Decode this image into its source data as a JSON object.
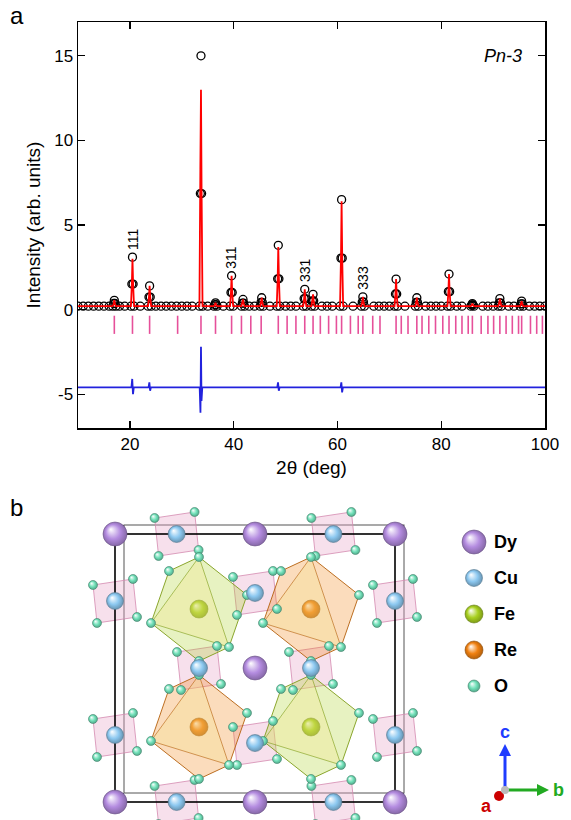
{
  "chart_data": {
    "type": "scatter",
    "panel_label": "a",
    "xlabel": "2θ (deg)",
    "ylabel": "Intensity (arb. units)",
    "xlim": [
      10,
      100
    ],
    "ylim": [
      -7,
      17
    ],
    "xticks": [
      20,
      40,
      60,
      80,
      100
    ],
    "yticks": [
      -5,
      0,
      5,
      10,
      15
    ],
    "grid": false,
    "x": [
      10,
      11,
      12,
      13,
      14,
      15,
      16,
      16.7,
      16.88,
      17.0,
      17.12,
      17.3,
      18,
      19,
      20.2,
      20.38,
      20.5,
      20.62,
      20.8,
      22,
      23.5,
      23.68,
      23.8,
      23.92,
      24.1,
      25,
      26,
      27,
      28,
      29,
      30,
      31,
      32,
      33.4,
      33.58,
      33.7,
      33.82,
      34.0,
      35,
      36.2,
      36.38,
      36.5,
      36.62,
      36.8,
      38,
      39.3,
      39.48,
      39.6,
      39.72,
      39.9,
      41.5,
      41.68,
      41.8,
      41.92,
      42.1,
      43,
      44,
      45.1,
      45.28,
      45.4,
      45.52,
      45.7,
      47,
      48.3,
      48.48,
      48.6,
      48.72,
      48.9,
      50,
      51,
      52,
      53.4,
      53.58,
      53.7,
      53.82,
      54.0,
      55.0,
      55.18,
      55.3,
      55.42,
      55.6,
      57,
      58,
      59,
      60.5,
      60.68,
      60.8,
      60.92,
      61.1,
      63,
      64.6,
      64.78,
      64.9,
      65.02,
      65.2,
      67,
      68,
      69,
      70,
      71.0,
      71.18,
      71.3,
      71.42,
      71.6,
      73,
      75.0,
      75.18,
      75.3,
      75.42,
      75.6,
      77,
      78,
      79,
      80,
      81.2,
      81.38,
      81.5,
      81.62,
      81.8,
      83,
      84,
      85.7,
      85.88,
      86.0,
      86.12,
      86.3,
      88,
      89,
      90,
      91.0,
      91.18,
      91.3,
      91.42,
      91.6,
      93,
      94,
      95.2,
      95.38,
      95.5,
      95.62,
      95.8,
      97,
      98,
      99,
      100
    ],
    "series": [
      {
        "type": "scatter",
        "marker": "circle",
        "color": "#000000",
        "values": [
          0.2,
          0.2,
          0.2,
          0.2,
          0.2,
          0.2,
          0.2,
          0.2,
          0.36,
          0.55,
          0.36,
          0.2,
          0.2,
          0.2,
          0.2,
          1.51,
          3.1,
          1.51,
          0.2,
          0.2,
          0.2,
          0.74,
          1.4,
          0.74,
          0.2,
          0.2,
          0.2,
          0.2,
          0.2,
          0.2,
          0.2,
          0.2,
          0.2,
          0.2,
          6.86,
          15.0,
          6.86,
          0.2,
          0.2,
          0.2,
          0.29,
          0.4,
          0.29,
          0.2,
          0.2,
          0.2,
          1.01,
          2.0,
          1.01,
          0.2,
          0.2,
          0.38,
          0.6,
          0.38,
          0.2,
          0.2,
          0.2,
          0.2,
          0.43,
          0.7,
          0.43,
          0.2,
          0.2,
          0.2,
          1.82,
          3.8,
          1.82,
          0.2,
          0.2,
          0.2,
          0.2,
          0.2,
          0.65,
          1.2,
          0.65,
          0.2,
          0.2,
          0.52,
          0.9,
          0.52,
          0.2,
          0.2,
          0.2,
          0.2,
          0.2,
          3.04,
          6.5,
          3.04,
          0.2,
          0.2,
          0.2,
          0.45,
          0.75,
          0.45,
          0.2,
          0.2,
          0.2,
          0.2,
          0.2,
          0.2,
          0.92,
          1.8,
          0.92,
          0.2,
          0.2,
          0.2,
          0.43,
          0.7,
          0.43,
          0.2,
          0.2,
          0.2,
          0.2,
          0.2,
          0.2,
          1.06,
          2.1,
          1.06,
          0.2,
          0.2,
          0.2,
          0.2,
          0.27,
          0.35,
          0.27,
          0.2,
          0.2,
          0.2,
          0.2,
          0.2,
          0.4,
          0.65,
          0.4,
          0.2,
          0.2,
          0.2,
          0.2,
          0.34,
          0.5,
          0.34,
          0.2,
          0.2,
          0.2,
          0.2,
          0.2
        ]
      },
      {
        "type": "line",
        "line_style": "solid",
        "color": "#ff0000",
        "values": [
          0.2,
          0.2,
          0.2,
          0.2,
          0.2,
          0.2,
          0.2,
          0.2,
          0.36,
          0.55,
          0.36,
          0.2,
          0.2,
          0.2,
          0.2,
          1.51,
          3.0,
          1.51,
          0.2,
          0.2,
          0.2,
          0.74,
          1.4,
          0.74,
          0.2,
          0.2,
          0.2,
          0.2,
          0.2,
          0.2,
          0.2,
          0.2,
          0.2,
          0.2,
          8.3,
          13.0,
          6.9,
          0.2,
          0.2,
          0.2,
          0.29,
          0.4,
          0.29,
          0.2,
          0.2,
          0.2,
          1.01,
          2.0,
          1.01,
          0.2,
          0.2,
          0.38,
          0.6,
          0.38,
          0.2,
          0.2,
          0.2,
          0.2,
          0.43,
          0.7,
          0.43,
          0.2,
          0.2,
          0.2,
          1.82,
          3.7,
          1.82,
          0.2,
          0.2,
          0.2,
          0.2,
          0.2,
          0.65,
          1.2,
          0.65,
          0.2,
          0.2,
          0.52,
          0.9,
          0.52,
          0.2,
          0.2,
          0.2,
          0.2,
          0.2,
          3.04,
          6.4,
          3.04,
          0.2,
          0.2,
          0.2,
          0.45,
          0.75,
          0.45,
          0.2,
          0.2,
          0.2,
          0.2,
          0.2,
          0.2,
          0.92,
          1.8,
          0.92,
          0.2,
          0.2,
          0.2,
          0.43,
          0.7,
          0.43,
          0.2,
          0.2,
          0.2,
          0.2,
          0.2,
          0.2,
          1.06,
          2.1,
          1.06,
          0.2,
          0.2,
          0.2,
          0.2,
          0.27,
          0.35,
          0.27,
          0.2,
          0.2,
          0.2,
          0.2,
          0.2,
          0.4,
          0.65,
          0.4,
          0.2,
          0.2,
          0.2,
          0.2,
          0.34,
          0.5,
          0.34,
          0.2,
          0.2,
          0.2,
          0.2,
          0.2
        ]
      },
      {
        "type": "scatter",
        "marker": "tick",
        "color": "#e6509a",
        "x": [
          17.0,
          20.5,
          23.8,
          29.2,
          33.7,
          36.5,
          39.6,
          41.5,
          43.3,
          45.3,
          48.6,
          50.3,
          52.0,
          53.7,
          55.3,
          56.7,
          58.3,
          59.8,
          60.8,
          62.5,
          64.0,
          64.9,
          66.8,
          68.2,
          71.3,
          72.3,
          73.6,
          75.3,
          76.3,
          77.6,
          78.9,
          80.3,
          81.5,
          82.8,
          84.0,
          85.2,
          86.0,
          87.7,
          89.0,
          90.1,
          91.3,
          92.5,
          93.7,
          94.9,
          95.5,
          97.2,
          98.4,
          99.5
        ],
        "values": [
          -0.9,
          -0.9,
          -0.9,
          -0.9,
          -0.9,
          -0.9,
          -0.9,
          -0.9,
          -0.9,
          -0.9,
          -0.9,
          -0.9,
          -0.9,
          -0.9,
          -0.9,
          -0.9,
          -0.9,
          -0.9,
          -0.9,
          -0.9,
          -0.9,
          -0.9,
          -0.9,
          -0.9,
          -0.9,
          -0.9,
          -0.9,
          -0.9,
          -0.9,
          -0.9,
          -0.9,
          -0.9,
          -0.9,
          -0.9,
          -0.9,
          -0.9,
          -0.9,
          -0.9,
          -0.9,
          -0.9,
          -0.9,
          -0.9,
          -0.9,
          -0.9,
          -0.9,
          -0.9,
          -0.9,
          -0.9
        ]
      },
      {
        "type": "line",
        "line_style": "solid",
        "color": "#2222dd",
        "x": [
          10,
          20.3,
          20.45,
          20.6,
          20.75,
          23.6,
          23.75,
          23.9,
          24.05,
          33.45,
          33.6,
          33.7,
          33.8,
          33.95,
          48.4,
          48.55,
          48.7,
          48.85,
          60.6,
          60.75,
          60.9,
          61.05,
          100
        ],
        "values": [
          -4.6,
          -4.6,
          -4.1,
          -5.0,
          -4.6,
          -4.6,
          -4.3,
          -4.8,
          -4.6,
          -4.6,
          -6.1,
          -2.2,
          -5.4,
          -4.6,
          -4.6,
          -4.3,
          -4.8,
          -4.6,
          -4.6,
          -4.3,
          -4.9,
          -4.6,
          -4.6
        ]
      }
    ],
    "peak_labels": [
      {
        "text": "111",
        "x": 20.5,
        "y": 3.4
      },
      {
        "text": "311",
        "x": 39.6,
        "y": 2.3
      },
      {
        "text": "331",
        "x": 53.7,
        "y": 1.5
      },
      {
        "text": "333",
        "x": 64.9,
        "y": 1.05
      }
    ],
    "annotations": [
      {
        "text": "Pn-3",
        "x": 92,
        "y": 15
      }
    ]
  },
  "diagram": {
    "panel_label": "b",
    "legend": [
      {
        "label": "Dy",
        "color": "#b48ce0"
      },
      {
        "label": "Cu",
        "color": "#8cc8f0"
      },
      {
        "label": "Fe",
        "color": "#a8d020"
      },
      {
        "label": "Re",
        "color": "#f08010"
      },
      {
        "label": "O",
        "color": "#70e0b8"
      }
    ],
    "axes": [
      {
        "label": "c",
        "color": "#1f3cff"
      },
      {
        "label": "b",
        "color": "#22aa22"
      },
      {
        "label": "a",
        "color": "#cc0000"
      }
    ]
  }
}
